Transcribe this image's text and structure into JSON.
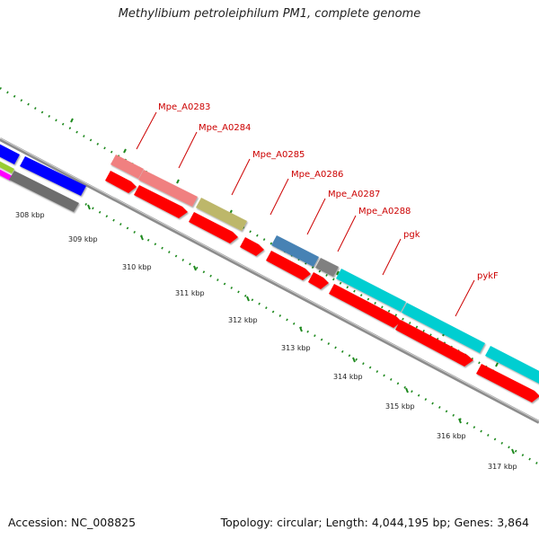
{
  "title": "Methylibium petroleiphilum PM1, complete genome",
  "footer": {
    "accession": "Accession: NC_008825",
    "stats": "Topology: circular; Length: 4,044,195 bp; Genes: 3,864"
  },
  "colors": {
    "backbone": "#8c8c8c",
    "tick": "#1f8a1f",
    "cds": "#ff0000",
    "label": "#cc0000"
  },
  "kbp_labels": [
    "308 kbp",
    "309 kbp",
    "310 kbp",
    "311 kbp",
    "312 kbp",
    "313 kbp",
    "314 kbp",
    "315 kbp",
    "316 kbp",
    "317 kbp"
  ],
  "gene_labels": [
    "Mpe_A0283",
    "Mpe_A0284",
    "Mpe_A0285",
    "Mpe_A0286",
    "Mpe_A0287",
    "Mpe_A0288",
    "pgk",
    "pykF"
  ],
  "features": [
    {
      "id": "mpe-a0283-cog",
      "color": "#f08080",
      "label": "Mpe_A0283"
    },
    {
      "id": "mpe-a0284-cog",
      "color": "#f08080",
      "label": "Mpe_A0284"
    },
    {
      "id": "mpe-a0285-cog",
      "color": "#bdb76b",
      "label": "Mpe_A0285"
    },
    {
      "id": "mpe-a0287-cog",
      "color": "#4682b4",
      "label": "Mpe_A0287"
    },
    {
      "id": "mpe-a0288-cog",
      "color": "#808080",
      "label": "Mpe_A0288"
    },
    {
      "id": "pgk-cog",
      "color": "#00ced1",
      "label": "pgk"
    },
    {
      "id": "pykf-cog",
      "color": "#00ced1",
      "label": "pykF"
    }
  ]
}
